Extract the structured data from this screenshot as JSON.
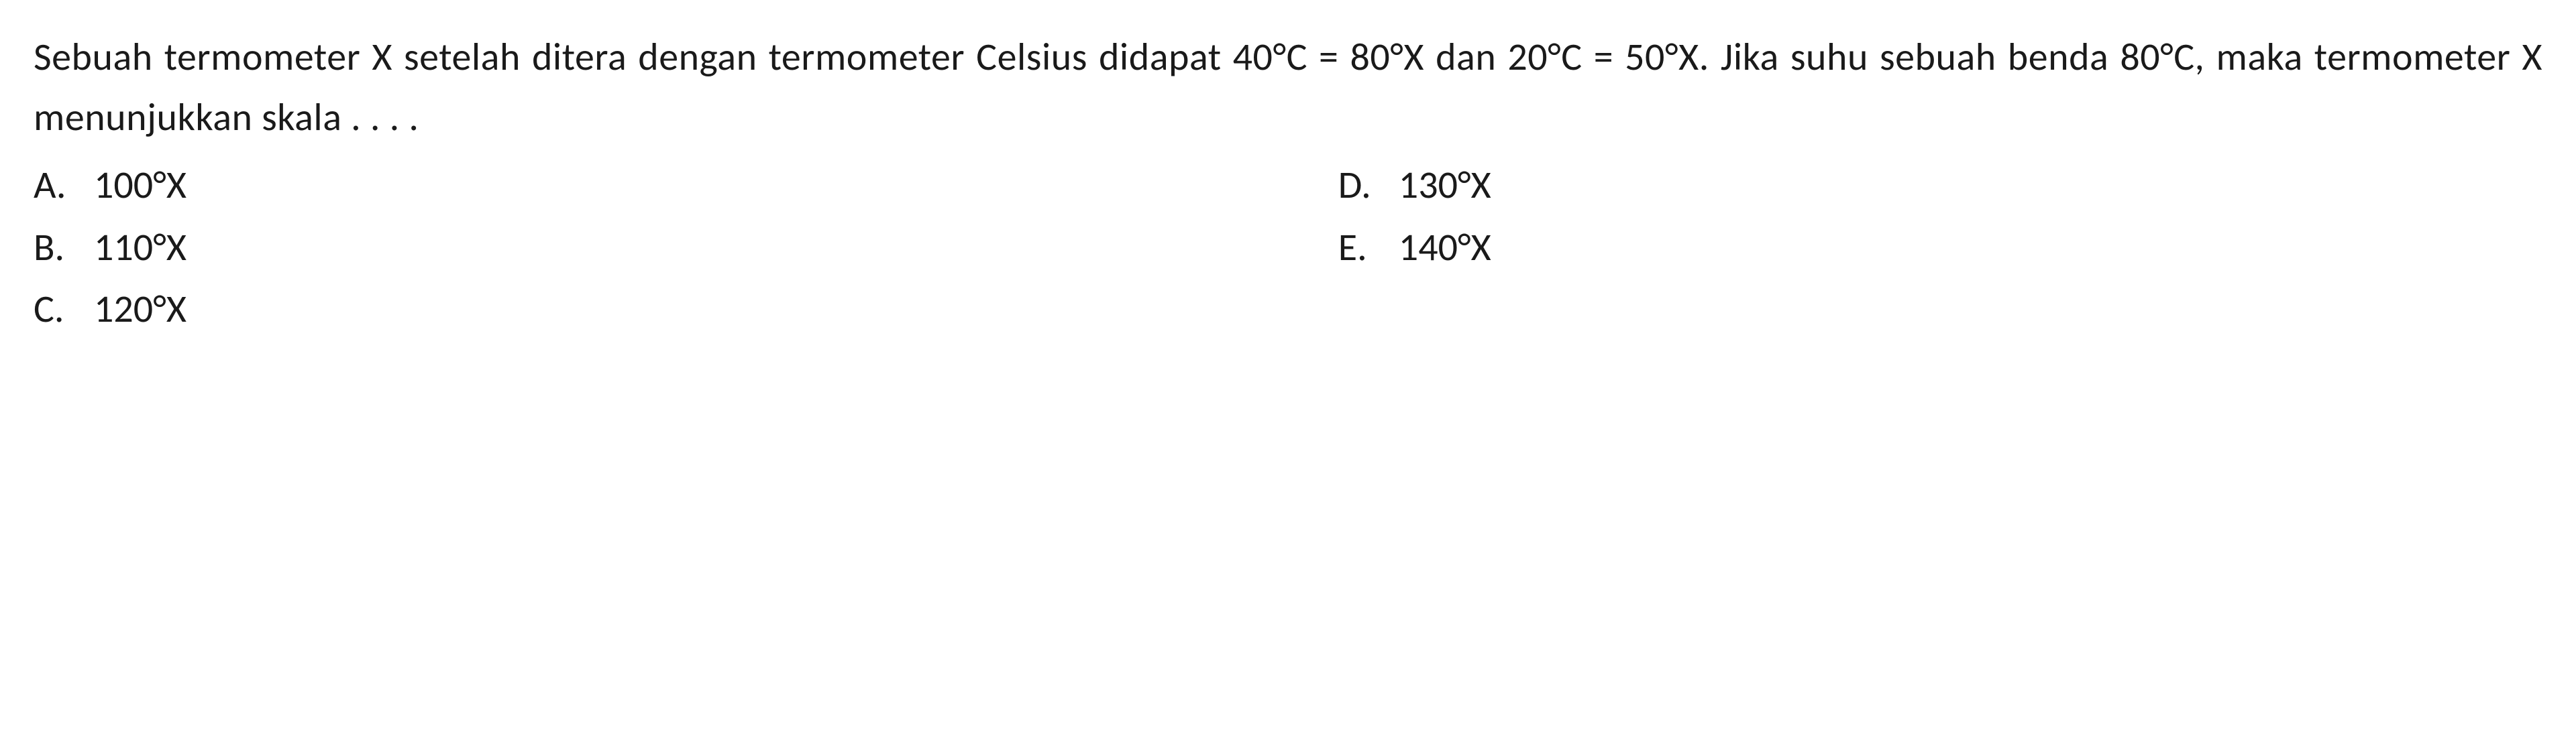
{
  "question": "Sebuah termometer X setelah ditera dengan termometer Celsius didapat 40°C = 80°X dan 20°C = 50°X. Jika suhu sebuah benda 80°C, maka termometer X menunjukkan skala . . . .",
  "options": {
    "a": {
      "letter": "A.",
      "value": "100°X"
    },
    "b": {
      "letter": "B.",
      "value": "110°X"
    },
    "c": {
      "letter": "C.",
      "value": "120°X"
    },
    "d": {
      "letter": "D.",
      "value": "130°X"
    },
    "e": {
      "letter": "E.",
      "value": "140°X"
    }
  },
  "colors": {
    "background": "#ffffff",
    "text": "#1a1a1a"
  },
  "font_size_pt": 58
}
